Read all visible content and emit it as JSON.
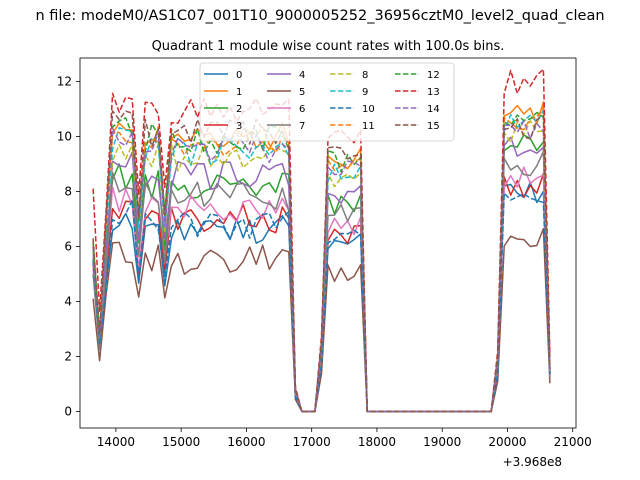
{
  "figure": {
    "suptitle": "n file: modeM0/AS1C07_001T10_9000005252_36956cztM0_level2_quad_clean",
    "offset_text": "+3.968e8"
  },
  "chart_data": {
    "type": "line",
    "title": "Quadrant 1 module wise count rates with 100.0s bins.",
    "xlabel": "",
    "ylabel": "",
    "xlim": [
      13450,
      21050
    ],
    "ylim": [
      -0.6,
      12.85
    ],
    "x_ticks": [
      14000,
      15000,
      16000,
      17000,
      18000,
      19000,
      20000,
      21000
    ],
    "y_ticks": [
      0,
      2,
      4,
      6,
      8,
      10,
      12
    ],
    "grid": false,
    "legend": {
      "position": "upper center",
      "columns": 4
    },
    "x_points": [
      13650,
      13750,
      13850,
      13950,
      14050,
      14150,
      14250,
      14350,
      14450,
      14550,
      14650,
      14750,
      14850,
      14950,
      15050,
      15150,
      15250,
      15350,
      15450,
      15550,
      15650,
      15750,
      15850,
      15950,
      16050,
      16150,
      16250,
      16350,
      16450,
      16550,
      16650,
      16750,
      16850,
      16950,
      17050,
      17150,
      17250,
      17350,
      17450,
      17550,
      17650,
      17750,
      17850,
      17950,
      18050,
      18150,
      18250,
      18350,
      18450,
      18550,
      18650,
      18750,
      18850,
      18950,
      19050,
      19150,
      19250,
      19350,
      19450,
      19550,
      19650,
      19750,
      19850,
      19950,
      20050,
      20150,
      20250,
      20350,
      20450,
      20550,
      20650
    ],
    "series": [
      {
        "name": "0",
        "color": "#1f77b4",
        "dash": "solid",
        "base": 6.6,
        "start": 5.4,
        "late": 8.0
      },
      {
        "name": "1",
        "color": "#ff7f0e",
        "dash": "solid",
        "base": 10.0,
        "start": 6.0,
        "late": 10.8
      },
      {
        "name": "2",
        "color": "#2ca02c",
        "dash": "solid",
        "base": 8.2,
        "start": 5.6,
        "late": 9.8
      },
      {
        "name": "3",
        "color": "#d62728",
        "dash": "solid",
        "base": 7.0,
        "start": 5.5,
        "late": 8.2
      },
      {
        "name": "4",
        "color": "#9467bd",
        "dash": "solid",
        "base": 8.6,
        "start": 5.8,
        "late": 9.6
      },
      {
        "name": "5",
        "color": "#8c564b",
        "dash": "solid",
        "base": 5.5,
        "start": 4.1,
        "late": 6.2
      },
      {
        "name": "6",
        "color": "#e377c2",
        "dash": "solid",
        "base": 7.4,
        "start": 5.2,
        "late": 8.6
      },
      {
        "name": "7",
        "color": "#7f7f7f",
        "dash": "solid",
        "base": 7.8,
        "start": 5.0,
        "late": 9.0
      },
      {
        "name": "8",
        "color": "#bcbd22",
        "dash": "dashed",
        "base": 9.2,
        "start": 5.9,
        "late": 10.2
      },
      {
        "name": "9",
        "color": "#17becf",
        "dash": "dashed",
        "base": 9.5,
        "start": 6.0,
        "late": 10.5
      },
      {
        "name": "10",
        "color": "#1f77b4",
        "dash": "dashed",
        "base": 6.8,
        "start": 5.5,
        "late": 7.6
      },
      {
        "name": "11",
        "color": "#ff7f0e",
        "dash": "dashed",
        "base": 9.8,
        "start": 6.1,
        "late": 10.6
      },
      {
        "name": "12",
        "color": "#2ca02c",
        "dash": "dashed",
        "base": 9.9,
        "start": 6.2,
        "late": 10.7
      },
      {
        "name": "13",
        "color": "#d62728",
        "dash": "dashed",
        "base": 11.0,
        "start": 8.1,
        "late": 12.0
      },
      {
        "name": "14",
        "color": "#9467bd",
        "dash": "dashed",
        "base": 9.6,
        "start": 6.0,
        "late": 10.2
      },
      {
        "name": "15",
        "color": "#8c564b",
        "dash": "dashed",
        "base": 10.1,
        "start": 6.3,
        "late": 10.3
      }
    ]
  }
}
